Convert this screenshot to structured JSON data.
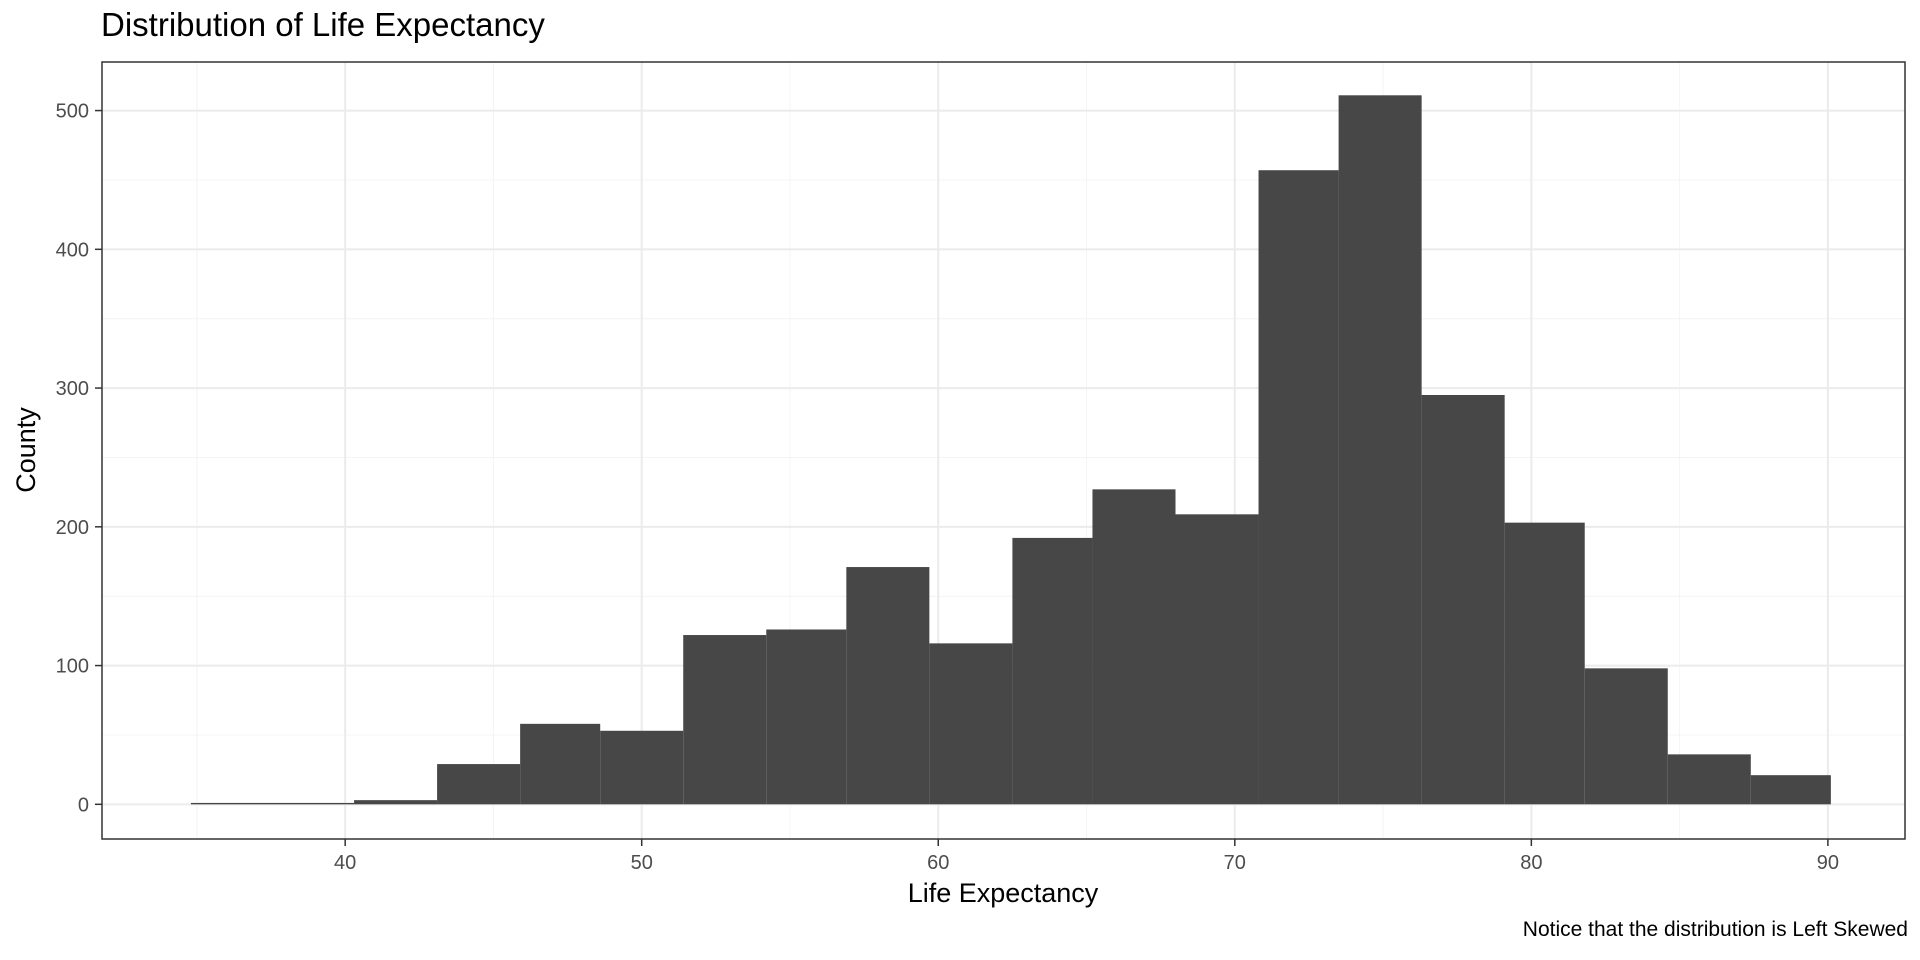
{
  "chart_data": {
    "type": "bar",
    "title": "Distribution of Life Expectancy",
    "xlabel": "Life Expectancy",
    "ylabel": "County",
    "caption": "Notice that the distribution is Left Skewed",
    "xlim": [
      31.8,
      92.6
    ],
    "ylim": [
      -25,
      535
    ],
    "x_ticks": [
      40,
      50,
      60,
      70,
      80,
      90
    ],
    "y_ticks": [
      0,
      100,
      200,
      300,
      400,
      500
    ],
    "grid": true,
    "bin_width": 2.77,
    "bins": [
      {
        "x0": 34.8,
        "x1": 37.6,
        "count": 1
      },
      {
        "x0": 37.6,
        "x1": 40.3,
        "count": 1
      },
      {
        "x0": 40.3,
        "x1": 43.1,
        "count": 3
      },
      {
        "x0": 43.1,
        "x1": 45.9,
        "count": 29
      },
      {
        "x0": 45.9,
        "x1": 48.6,
        "count": 58
      },
      {
        "x0": 48.6,
        "x1": 51.4,
        "count": 53
      },
      {
        "x0": 51.4,
        "x1": 54.2,
        "count": 122
      },
      {
        "x0": 54.2,
        "x1": 56.9,
        "count": 126
      },
      {
        "x0": 56.9,
        "x1": 59.7,
        "count": 171
      },
      {
        "x0": 59.7,
        "x1": 62.5,
        "count": 116
      },
      {
        "x0": 62.5,
        "x1": 65.2,
        "count": 192
      },
      {
        "x0": 65.2,
        "x1": 68.0,
        "count": 227
      },
      {
        "x0": 68.0,
        "x1": 70.8,
        "count": 209
      },
      {
        "x0": 70.8,
        "x1": 73.5,
        "count": 457
      },
      {
        "x0": 73.5,
        "x1": 76.3,
        "count": 511
      },
      {
        "x0": 76.3,
        "x1": 79.1,
        "count": 295
      },
      {
        "x0": 79.1,
        "x1": 81.8,
        "count": 203
      },
      {
        "x0": 81.8,
        "x1": 84.6,
        "count": 98
      },
      {
        "x0": 84.6,
        "x1": 87.4,
        "count": 36
      },
      {
        "x0": 87.4,
        "x1": 90.1,
        "count": 21
      }
    ],
    "colors": {
      "bar": "#474747",
      "panel_border": "#333333",
      "grid_major": "#ebebeb",
      "grid_minor": "#f4f4f4"
    }
  }
}
